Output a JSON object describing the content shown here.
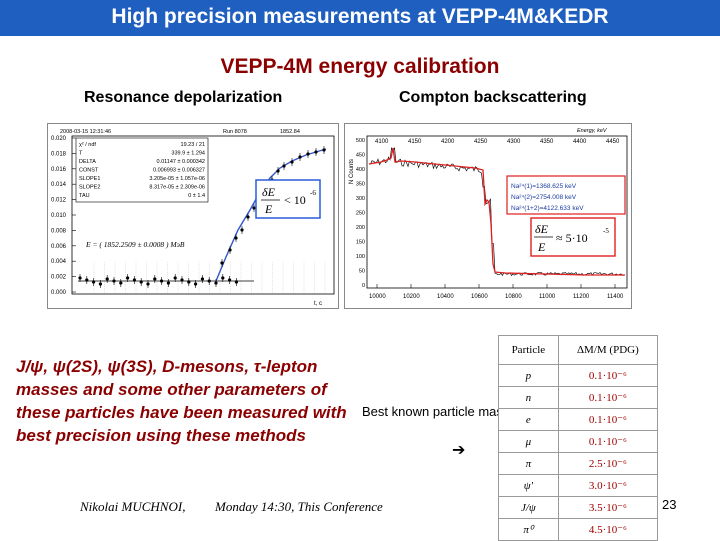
{
  "slide": {
    "title": "High precision measurements at VEPP-4M&KEDR",
    "subtitle": "VEPP-4M energy calibration",
    "left_label": "Resonance depolarization",
    "right_label": "Compton backscattering",
    "paragraph": "J/ψ, ψ(2S), ψ(3S), D-mesons, τ-lepton masses and some other parameters of these particles have been measured with best precision using these methods",
    "best_known": "Best known particle masses",
    "arrow": "➔",
    "footer_author": "Nikolai MUCHNOI,",
    "footer_time": "Monday 14:30, This Conference",
    "page_number": "23"
  },
  "left_plot": {
    "header_left": "2008-03-15 12:31:46",
    "header_right": "Run 8078",
    "header_right2": "1852.84",
    "stats": [
      [
        "χ² / ndf",
        "19.23 / 21"
      ],
      [
        "T",
        "339.9 ± 1.294"
      ],
      [
        "DELTA",
        "0.01147 ± 0.000342"
      ],
      [
        "CONST",
        "0.006993 ± 0.006327"
      ],
      [
        "SLOPE1",
        "3.205e-05 ± 1.057e-06"
      ],
      [
        "SLOPE2",
        "8.317e-05 ± 2.309e-06"
      ],
      [
        "TAU",
        "0 ± 1.4"
      ]
    ],
    "y_ticks": [
      "0.020",
      "0.018",
      "0.016",
      "0.014",
      "0.012",
      "0.010",
      "0.008",
      "0.006",
      "0.004",
      "0.002",
      "0.000"
    ],
    "energy_formula": "E = ( 1852.2509 ± 0.0008 ) MэB",
    "x_axis_label": "t, c",
    "annotation": "δE/E < 10⁻⁶",
    "ann_delta": "δE",
    "ann_E": "E",
    "ann_rel": "< 10",
    "ann_exp": "-6",
    "colors": {
      "steep": "#3355cc",
      "shallow": "#666666",
      "marker": "#000000",
      "annot": "#2a5bd7"
    }
  },
  "right_plot": {
    "x_top_label": "Energy, keV",
    "x_top_ticks": [
      "4100",
      "4150",
      "4200",
      "4250",
      "4300",
      "4350",
      "4400",
      "4450"
    ],
    "x_bottom_ticks": [
      "10000",
      "10200",
      "10400",
      "10600",
      "10800",
      "11000",
      "11200",
      "11400"
    ],
    "y_label": "N Counts",
    "y_ticks": [
      "500",
      "450",
      "400",
      "350",
      "300",
      "250",
      "200",
      "150",
      "100",
      "50",
      "0"
    ],
    "legend": [
      "Na²⁴(1)=1368.625 keV",
      "Na²⁴(2)=2754.008 keV",
      "Na²⁴(1+2)=4122.633 keV"
    ],
    "annotation": "δE/E ≈ 5·10⁻⁵",
    "ann_delta": "δE",
    "ann_E": "E",
    "ann_rel": "≈ 5·10",
    "ann_exp": "-5",
    "colors": {
      "spectrum": "#111111",
      "fit": "#e02020",
      "legend_border": "#e02020",
      "legend_text": "#1a3aa0"
    }
  },
  "mass_table": {
    "headers": [
      "Particle",
      "ΔM/M (PDG)"
    ],
    "rows": [
      [
        "p",
        "0.1·10⁻⁶"
      ],
      [
        "n",
        "0.1·10⁻⁶"
      ],
      [
        "e",
        "0.1·10⁻⁶"
      ],
      [
        "μ",
        "0.1·10⁻⁶"
      ],
      [
        "π",
        "2.5·10⁻⁶"
      ],
      [
        "ψ'",
        "3.0·10⁻⁶"
      ],
      [
        "J/ψ",
        "3.5·10⁻⁶"
      ],
      [
        "π⁰",
        "4.5·10⁻⁶"
      ]
    ]
  }
}
